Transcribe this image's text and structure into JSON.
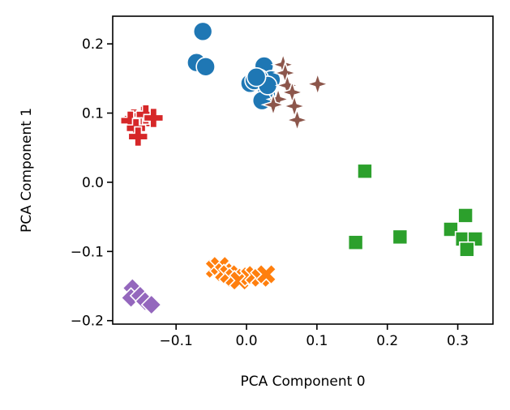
{
  "chart_data": {
    "type": "scatter",
    "title": "",
    "xlabel": "PCA Component 0",
    "ylabel": "PCA Component 1",
    "xlim": [
      -0.19,
      0.35
    ],
    "ylim": [
      -0.205,
      0.24
    ],
    "grid": false,
    "legend": "none",
    "xticks": [
      -0.1,
      0.0,
      0.1,
      0.2,
      0.3
    ],
    "xtick_labels": [
      "−0.1",
      "0.0",
      "0.1",
      "0.2",
      "0.3"
    ],
    "yticks": [
      -0.2,
      -0.1,
      0.0,
      0.1,
      0.2
    ],
    "ytick_labels": [
      "−0.2",
      "−0.1",
      "0.0",
      "0.1",
      "0.2"
    ],
    "series": [
      {
        "marker": "circle",
        "color": "#1f77b4",
        "points": [
          [
            -0.062,
            0.218
          ],
          [
            -0.071,
            0.173
          ],
          [
            -0.058,
            0.167
          ],
          [
            0.025,
            0.168
          ],
          [
            0.035,
            0.148
          ],
          [
            0.018,
            0.15
          ],
          [
            0.005,
            0.143
          ],
          [
            0.011,
            0.147
          ],
          [
            0.028,
            0.128
          ],
          [
            0.022,
            0.118
          ],
          [
            0.03,
            0.14
          ],
          [
            0.014,
            0.152
          ]
        ]
      },
      {
        "marker": "x",
        "color": "#ff7f0e",
        "points": [
          [
            -0.045,
            -0.125
          ],
          [
            -0.038,
            -0.121
          ],
          [
            -0.032,
            -0.13
          ],
          [
            -0.025,
            -0.133
          ],
          [
            -0.017,
            -0.138
          ],
          [
            -0.01,
            -0.142
          ],
          [
            0.005,
            -0.136
          ],
          [
            0.012,
            -0.134
          ],
          [
            0.02,
            -0.138
          ],
          [
            0.028,
            -0.133
          ]
        ]
      },
      {
        "marker": "square",
        "color": "#2ca02c",
        "points": [
          [
            0.168,
            0.016
          ],
          [
            0.155,
            -0.087
          ],
          [
            0.218,
            -0.079
          ],
          [
            0.311,
            -0.048
          ],
          [
            0.29,
            -0.068
          ],
          [
            0.307,
            -0.082
          ],
          [
            0.325,
            -0.082
          ],
          [
            0.313,
            -0.097
          ]
        ]
      },
      {
        "marker": "plus",
        "color": "#d62728",
        "points": [
          [
            -0.16,
            0.092
          ],
          [
            -0.146,
            0.096
          ],
          [
            -0.138,
            0.094
          ],
          [
            -0.15,
            0.085
          ],
          [
            -0.165,
            0.089
          ],
          [
            -0.157,
            0.078
          ],
          [
            -0.154,
            0.066
          ],
          [
            -0.143,
            0.098
          ],
          [
            -0.132,
            0.093
          ]
        ]
      },
      {
        "marker": "diamond",
        "color": "#9467bd",
        "points": [
          [
            -0.162,
            -0.153
          ],
          [
            -0.164,
            -0.167
          ],
          [
            -0.151,
            -0.164
          ],
          [
            -0.144,
            -0.172
          ],
          [
            -0.135,
            -0.177
          ]
        ]
      },
      {
        "marker": "star",
        "color": "#8c564b",
        "points": [
          [
            0.052,
            0.17
          ],
          [
            0.055,
            0.158
          ],
          [
            0.045,
            0.12
          ],
          [
            0.038,
            0.112
          ],
          [
            0.058,
            0.14
          ],
          [
            0.065,
            0.13
          ],
          [
            0.068,
            0.11
          ],
          [
            0.072,
            0.09
          ],
          [
            0.101,
            0.142
          ]
        ]
      }
    ]
  }
}
